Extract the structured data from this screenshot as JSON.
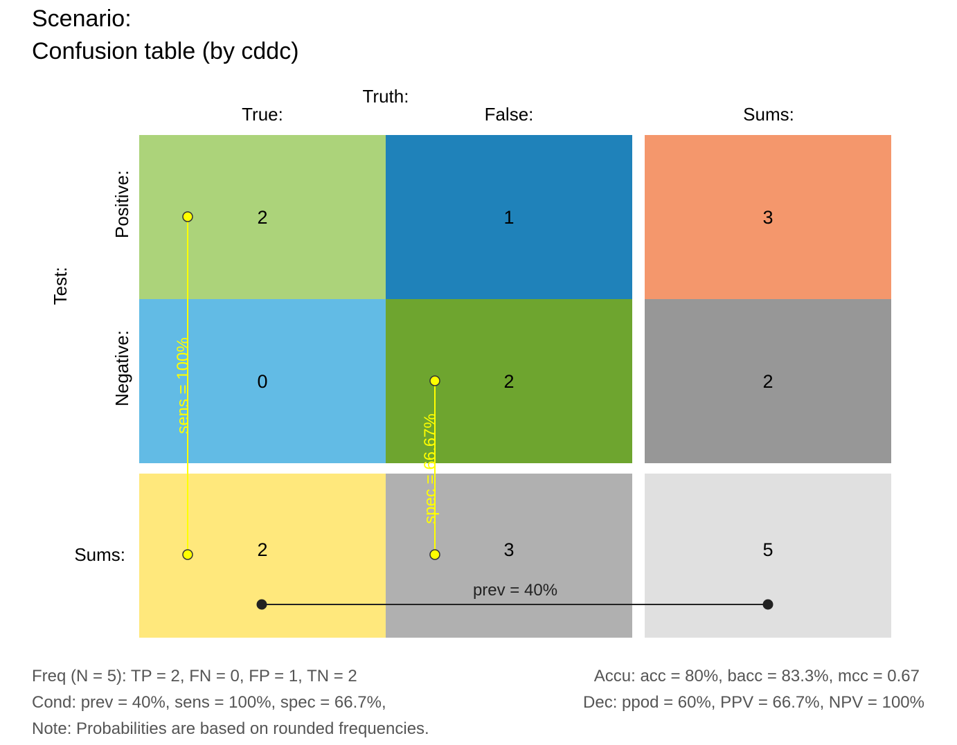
{
  "title": {
    "line1": "Scenario:",
    "line2": "Confusion table (by cddc)"
  },
  "headers": {
    "truth": "Truth:",
    "true_col": "True:",
    "false_col": "False:",
    "sums_col": "Sums:",
    "test": "Test:",
    "positive_row": "Positive:",
    "negative_row": "Negative:",
    "sums_row": "Sums:"
  },
  "chart_data": {
    "type": "table",
    "rows": [
      "Positive:",
      "Negative:",
      "Sums:"
    ],
    "columns": [
      "True:",
      "False:",
      "Sums:"
    ],
    "cells": [
      [
        2,
        1,
        3
      ],
      [
        0,
        2,
        2
      ],
      [
        2,
        3,
        5
      ]
    ],
    "colors": [
      [
        "#acd37a",
        "#1f82ba",
        "#f4976c"
      ],
      [
        "#62bbe5",
        "#6ea52f",
        "#979797"
      ],
      [
        "#ffe87c",
        "#b0b0b0",
        "#e0e0e0"
      ]
    ],
    "metrics": [
      {
        "name": "sens",
        "label": "sens = 100%",
        "value": 1.0,
        "color": "#ffff00"
      },
      {
        "name": "spec",
        "label": "spec = 66.67%",
        "value": 0.6667,
        "color": "#ffff00"
      },
      {
        "name": "prev",
        "label": "prev = 40%",
        "value": 0.4,
        "color": "#222222"
      }
    ]
  },
  "footer": {
    "freq": "Freq (N = 5):  TP = 2, FN = 0, FP = 1, TN = 2",
    "cond": "Cond:  prev = 40%, sens = 100%, spec = 66.7%,",
    "note": "Note:  Probabilities are based on rounded frequencies.",
    "accu": "Accu:  acc = 80%, bacc = 83.3%, mcc = 0.67",
    "dec": "Dec:  ppod = 60%, PPV = 66.7%, NPV = 100%"
  }
}
